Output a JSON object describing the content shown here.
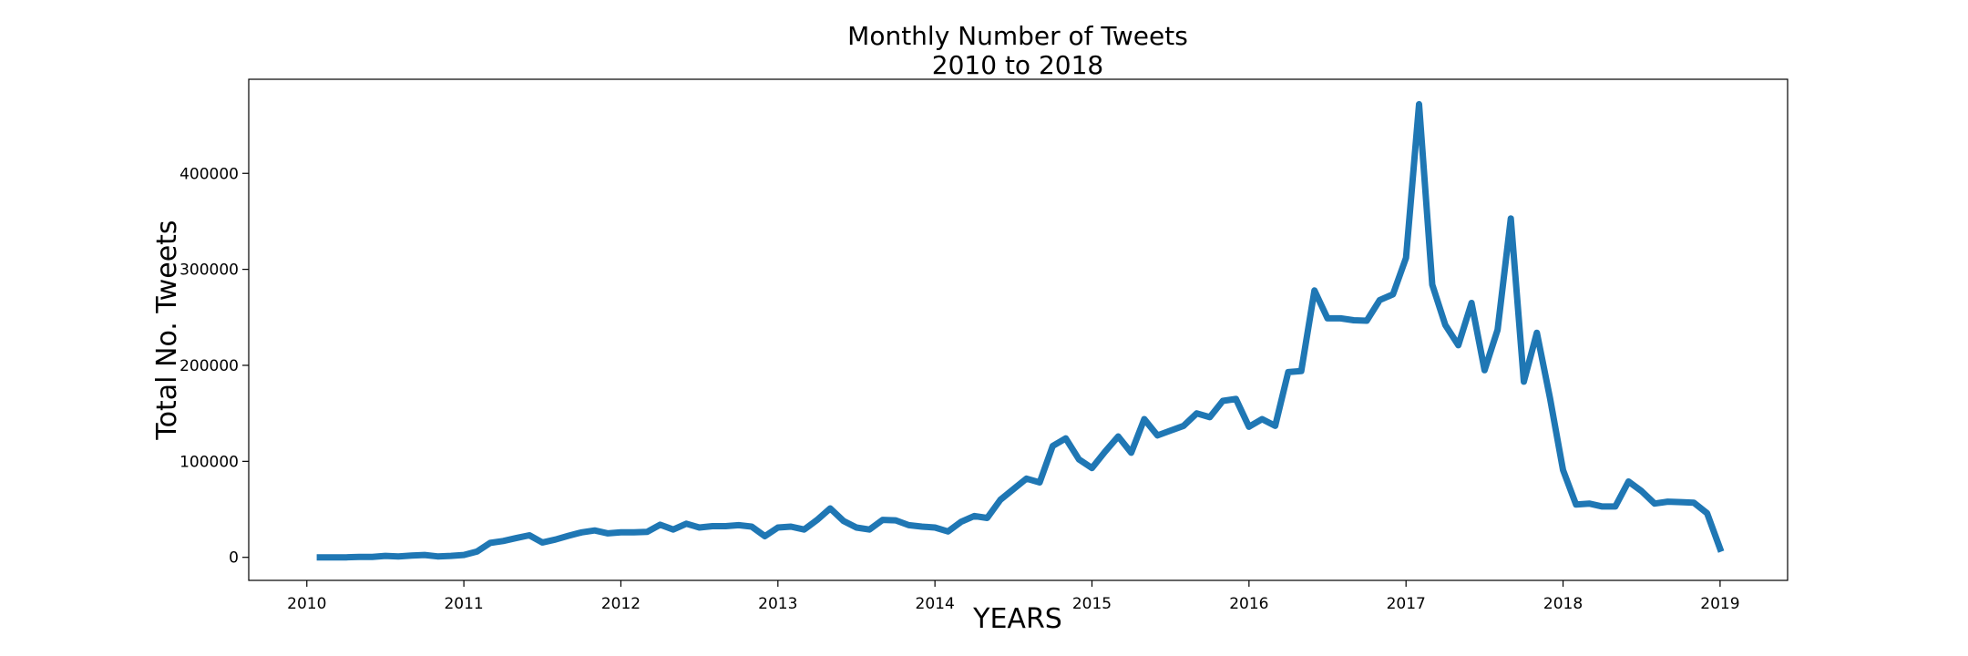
{
  "chart_data": {
    "type": "line",
    "title": "Monthly Number of Tweets",
    "subtitle": "2010 to 2018",
    "xlabel": "YEARS",
    "ylabel": "Total No. Tweets",
    "xlim": [
      2009.63,
      2019.43
    ],
    "ylim": [
      -24000,
      498000
    ],
    "xticks": [
      2010,
      2011,
      2012,
      2013,
      2014,
      2015,
      2016,
      2017,
      2018,
      2019
    ],
    "xtick_labels": [
      "2010",
      "2011",
      "2012",
      "2013",
      "2014",
      "2015",
      "2016",
      "2017",
      "2018",
      "2019"
    ],
    "yticks": [
      0,
      100000,
      200000,
      300000,
      400000
    ],
    "ytick_labels": [
      "0",
      "100000",
      "200000",
      "300000",
      "400000"
    ],
    "grid": false,
    "series": [
      {
        "color": "#1f77b4",
        "x": [
          2010.083,
          2010.167,
          2010.25,
          2010.333,
          2010.417,
          2010.5,
          2010.583,
          2010.667,
          2010.75,
          2010.833,
          2010.917,
          2011.0,
          2011.083,
          2011.167,
          2011.25,
          2011.333,
          2011.417,
          2011.5,
          2011.583,
          2011.667,
          2011.75,
          2011.833,
          2011.917,
          2012.0,
          2012.083,
          2012.167,
          2012.25,
          2012.333,
          2012.417,
          2012.5,
          2012.583,
          2012.667,
          2012.75,
          2012.833,
          2012.917,
          2013.0,
          2013.083,
          2013.167,
          2013.25,
          2013.333,
          2013.417,
          2013.5,
          2013.583,
          2013.667,
          2013.75,
          2013.833,
          2013.917,
          2014.0,
          2014.083,
          2014.167,
          2014.25,
          2014.333,
          2014.417,
          2014.5,
          2014.583,
          2014.667,
          2014.75,
          2014.833,
          2014.917,
          2015.0,
          2015.083,
          2015.167,
          2015.25,
          2015.333,
          2015.417,
          2015.5,
          2015.583,
          2015.667,
          2015.75,
          2015.833,
          2015.917,
          2016.0,
          2016.083,
          2016.167,
          2016.25,
          2016.333,
          2016.417,
          2016.5,
          2016.583,
          2016.667,
          2016.75,
          2016.833,
          2016.917,
          2017.0,
          2017.083,
          2017.167,
          2017.25,
          2017.333,
          2017.417,
          2017.5,
          2017.583,
          2017.667,
          2017.75,
          2017.833,
          2017.917,
          2018.0,
          2018.083,
          2018.167,
          2018.25,
          2018.333,
          2018.417,
          2018.5,
          2018.583,
          2018.667,
          2018.75,
          2018.833,
          2018.917,
          2019.0
        ],
        "values": [
          0,
          0,
          0,
          500,
          500,
          1500,
          1000,
          1800,
          2500,
          1000,
          1500,
          2500,
          6000,
          15000,
          17000,
          20000,
          23000,
          15500,
          18500,
          22500,
          26000,
          28000,
          25000,
          26000,
          26000,
          26500,
          34000,
          29000,
          35000,
          31000,
          32500,
          32500,
          33500,
          32000,
          22000,
          31000,
          32000,
          29000,
          39000,
          51000,
          38000,
          31000,
          29000,
          39000,
          38500,
          33500,
          32000,
          31000,
          27000,
          37000,
          43000,
          41000,
          60000,
          71000,
          82000,
          78000,
          116000,
          124000,
          102000,
          93000,
          110000,
          126000,
          109000,
          144000,
          127000,
          132000,
          137000,
          150000,
          146000,
          163000,
          165000,
          136000,
          144000,
          137000,
          193000,
          194000,
          278000,
          249000,
          249000,
          247000,
          246500,
          268000,
          274000,
          312000,
          472000,
          284000,
          242000,
          221000,
          265000,
          195000,
          237000,
          353000,
          183000,
          234000,
          166000,
          91000,
          55000,
          56000,
          53000,
          53000,
          79000,
          69000,
          56000,
          58000,
          57500,
          57000,
          46000,
          9000
        ]
      }
    ]
  }
}
